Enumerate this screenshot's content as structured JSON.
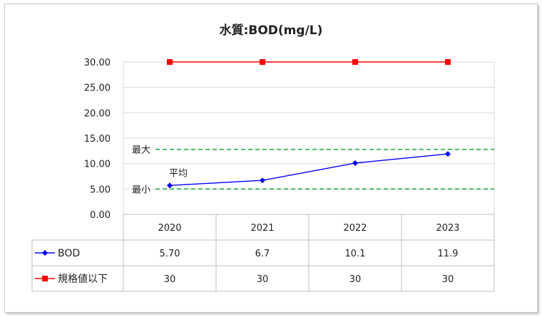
{
  "chart_data": {
    "type": "line",
    "title": "水質:BOD(mg/L)",
    "categories": [
      "2020",
      "2021",
      "2022",
      "2023"
    ],
    "yticks": [
      "30.00",
      "25.00",
      "20.00",
      "15.00",
      "10.00",
      "5.00",
      "0.00"
    ],
    "ylim": [
      0,
      30
    ],
    "grid": true,
    "series": [
      {
        "name": "BOD",
        "values": [
          5.7,
          6.7,
          10.1,
          11.9
        ],
        "labels": [
          "5.70",
          "6.7",
          "10.1",
          "11.9"
        ],
        "color": "#0000ff",
        "marker": "diamond"
      },
      {
        "name": "規格値以下",
        "values": [
          30,
          30,
          30,
          30
        ],
        "labels": [
          "30",
          "30",
          "30",
          "30"
        ],
        "color": "#ff0000",
        "marker": "square"
      }
    ],
    "reference_lines": [
      {
        "label": "最大",
        "value": 12.8,
        "color": "#22aa44"
      },
      {
        "label": "最小",
        "value": 5.0,
        "color": "#22aa44"
      }
    ],
    "annotations": [
      {
        "text": "平均",
        "near_category": "2020"
      }
    ],
    "legend": "data-table-left"
  }
}
